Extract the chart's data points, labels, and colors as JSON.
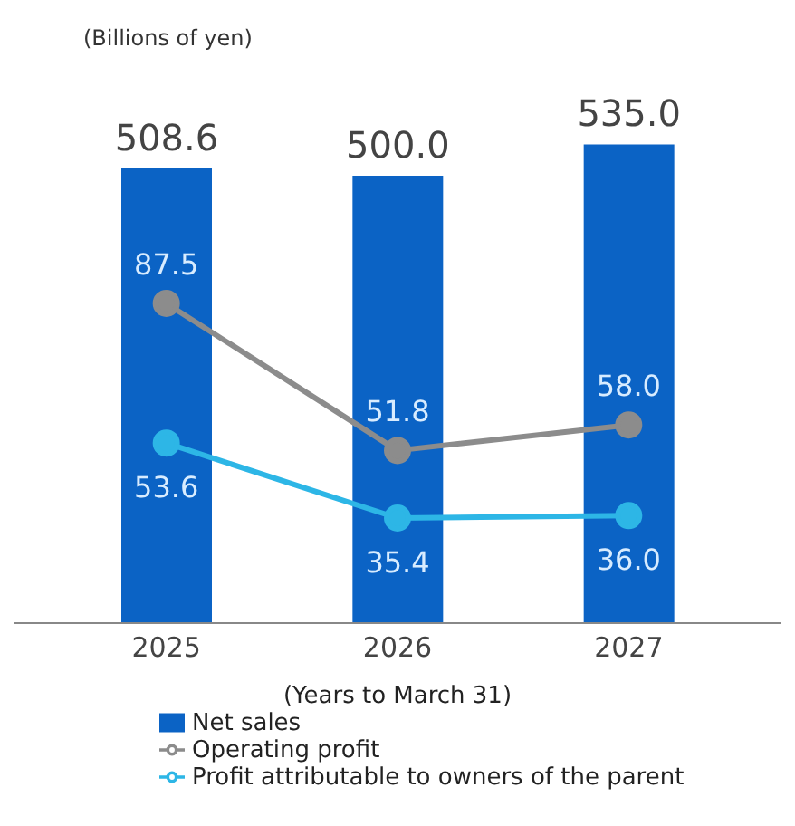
{
  "chart_data": {
    "type": "bar",
    "ylabel": "(Billions of yen)",
    "xlabel": "(Years to March 31)",
    "categories": [
      "2025",
      "2026",
      "2027"
    ],
    "series": [
      {
        "name": "Net sales",
        "color": "#0b63c5",
        "values": [
          508.6,
          500.0,
          535.0
        ],
        "value_labels": [
          "508.6",
          "500.0",
          "535.0"
        ]
      },
      {
        "name": "Operating profit",
        "type": "line",
        "axis": "y2",
        "color": "#8c8c8c",
        "values": [
          87.5,
          51.8,
          58.0
        ],
        "value_labels": [
          "87.5",
          "51.8",
          "58.0"
        ]
      },
      {
        "name": "Profit attributable to owners of the parent",
        "type": "line",
        "axis": "y2",
        "color": "#2db6e6",
        "values": [
          53.6,
          35.4,
          36.0
        ],
        "value_labels": [
          "53.6",
          "35.4",
          "36.0"
        ]
      }
    ],
    "tick_labels": "x",
    "marker": "circle",
    "legend": "bottom",
    "grid": false
  }
}
